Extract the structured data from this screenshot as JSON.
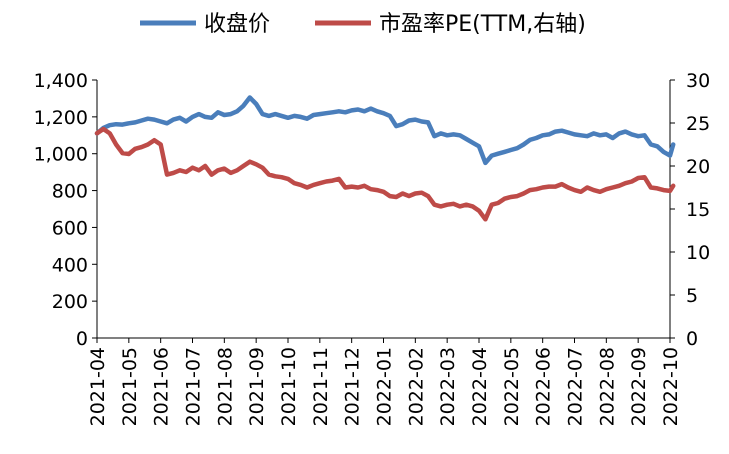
{
  "chart_data": {
    "type": "line",
    "title": "",
    "legend": {
      "placement": "top",
      "entries": [
        {
          "label": "收盘价",
          "color": "#4A7EBB"
        },
        {
          "label": "市盈率PE(TTM,右轴)",
          "color": "#BE4B48"
        }
      ]
    },
    "x_tick_labels": [
      "2021-04",
      "2021-05",
      "2021-06",
      "2021-07",
      "2021-08",
      "2021-09",
      "2021-10",
      "2021-11",
      "2021-12",
      "2022-01",
      "2022-02",
      "2022-03",
      "2022-04",
      "2022-05",
      "2022-06",
      "2022-07",
      "2022-08",
      "2022-09",
      "2022-10"
    ],
    "y_left": {
      "min": 0,
      "max": 1400,
      "ticks": [
        "0",
        "200",
        "400",
        "600",
        "800",
        "1,000",
        "1,200",
        "1,400"
      ]
    },
    "y_right": {
      "min": 0,
      "max": 30,
      "ticks": [
        "0",
        "5",
        "10",
        "15",
        "20",
        "25",
        "30"
      ]
    },
    "series": [
      {
        "name": "收盘价",
        "axis": "left",
        "color": "#4A7EBB",
        "x": [
          0,
          0.2,
          0.4,
          0.6,
          0.8,
          1.0,
          1.2,
          1.4,
          1.6,
          1.8,
          2.0,
          2.2,
          2.4,
          2.6,
          2.8,
          3.0,
          3.2,
          3.4,
          3.6,
          3.8,
          4.0,
          4.2,
          4.4,
          4.6,
          4.8,
          5.0,
          5.2,
          5.4,
          5.6,
          5.8,
          6.0,
          6.2,
          6.4,
          6.6,
          6.8,
          7.0,
          7.2,
          7.4,
          7.6,
          7.8,
          8.0,
          8.2,
          8.4,
          8.6,
          8.8,
          9.0,
          9.2,
          9.4,
          9.6,
          9.8,
          10.0,
          10.2,
          10.4,
          10.6,
          10.8,
          11.0,
          11.2,
          11.4,
          11.6,
          11.8,
          12.0,
          12.2,
          12.4,
          12.6,
          12.8,
          13.0,
          13.2,
          13.4,
          13.6,
          13.8,
          14.0,
          14.2,
          14.4,
          14.6,
          14.8,
          15.0,
          15.2,
          15.4,
          15.6,
          15.8,
          16.0,
          16.2,
          16.4,
          16.6,
          16.8,
          17.0,
          17.2,
          17.4,
          17.6,
          17.8,
          18.0,
          18.1
        ],
        "values": [
          1110,
          1140,
          1155,
          1160,
          1158,
          1165,
          1170,
          1180,
          1190,
          1185,
          1175,
          1165,
          1185,
          1195,
          1175,
          1200,
          1215,
          1200,
          1195,
          1225,
          1210,
          1215,
          1230,
          1260,
          1305,
          1270,
          1215,
          1205,
          1215,
          1205,
          1195,
          1205,
          1200,
          1190,
          1210,
          1215,
          1220,
          1225,
          1230,
          1225,
          1235,
          1240,
          1230,
          1245,
          1230,
          1220,
          1205,
          1150,
          1160,
          1180,
          1185,
          1175,
          1170,
          1095,
          1110,
          1100,
          1105,
          1100,
          1080,
          1060,
          1040,
          950,
          990,
          1000,
          1010,
          1020,
          1030,
          1050,
          1075,
          1085,
          1100,
          1105,
          1120,
          1125,
          1115,
          1105,
          1100,
          1095,
          1110,
          1100,
          1105,
          1085,
          1110,
          1120,
          1105,
          1095,
          1100,
          1050,
          1040,
          1010,
          990,
          1050
        ]
      },
      {
        "name": "市盈率PE(TTM,右轴)",
        "axis": "right",
        "color": "#BE4B48",
        "x": [
          0,
          0.2,
          0.4,
          0.6,
          0.8,
          1.0,
          1.2,
          1.4,
          1.6,
          1.8,
          2.0,
          2.2,
          2.4,
          2.6,
          2.8,
          3.0,
          3.2,
          3.4,
          3.6,
          3.8,
          4.0,
          4.2,
          4.4,
          4.6,
          4.8,
          5.0,
          5.2,
          5.4,
          5.6,
          5.8,
          6.0,
          6.2,
          6.4,
          6.6,
          6.8,
          7.0,
          7.2,
          7.4,
          7.6,
          7.8,
          8.0,
          8.2,
          8.4,
          8.6,
          8.8,
          9.0,
          9.2,
          9.4,
          9.6,
          9.8,
          10.0,
          10.2,
          10.4,
          10.6,
          10.8,
          11.0,
          11.2,
          11.4,
          11.6,
          11.8,
          12.0,
          12.2,
          12.4,
          12.6,
          12.8,
          13.0,
          13.2,
          13.4,
          13.6,
          13.8,
          14.0,
          14.2,
          14.4,
          14.6,
          14.8,
          15.0,
          15.2,
          15.4,
          15.6,
          15.8,
          16.0,
          16.2,
          16.4,
          16.6,
          16.8,
          17.0,
          17.2,
          17.4,
          17.6,
          17.8,
          18.0,
          18.1
        ],
        "values": [
          23.8,
          24.3,
          23.8,
          22.5,
          21.5,
          21.4,
          22.0,
          22.2,
          22.5,
          23.0,
          22.5,
          19.0,
          19.2,
          19.5,
          19.3,
          19.8,
          19.5,
          20.0,
          19.0,
          19.5,
          19.7,
          19.2,
          19.5,
          20.0,
          20.5,
          20.2,
          19.8,
          19.0,
          18.8,
          18.7,
          18.5,
          18.0,
          17.8,
          17.5,
          17.8,
          18.0,
          18.2,
          18.3,
          18.5,
          17.5,
          17.6,
          17.5,
          17.7,
          17.3,
          17.2,
          17.0,
          16.5,
          16.4,
          16.8,
          16.5,
          16.8,
          16.9,
          16.5,
          15.5,
          15.3,
          15.5,
          15.6,
          15.3,
          15.5,
          15.3,
          14.8,
          13.8,
          15.5,
          15.7,
          16.2,
          16.4,
          16.5,
          16.8,
          17.2,
          17.3,
          17.5,
          17.6,
          17.6,
          17.9,
          17.5,
          17.2,
          17.0,
          17.5,
          17.2,
          17.0,
          17.3,
          17.5,
          17.7,
          18.0,
          18.2,
          18.6,
          18.7,
          17.5,
          17.4,
          17.2,
          17.1,
          17.7
        ]
      }
    ]
  }
}
